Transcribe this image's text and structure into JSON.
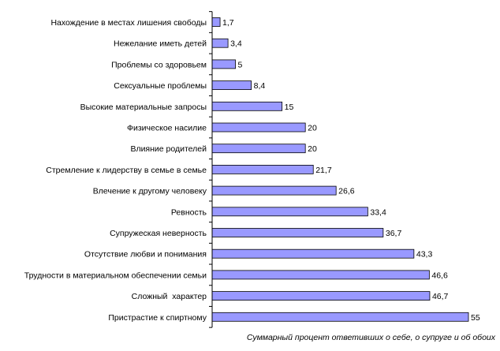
{
  "chart_data": {
    "type": "bar",
    "orientation": "horizontal",
    "categories": [
      "Нахождение в местах лишения свободы",
      "Нежелание иметь детей",
      "Проблемы со здоровьем",
      "Сексуальные проблемы",
      "Высокие материальные запросы",
      "Физическое насилие",
      "Влияние родителей",
      "Стремление к лидерству в семье в семье",
      "Влечение к другому человеку",
      "Ревность",
      "Супружеская неверность",
      "Отсутствие любви и понимания",
      "Трудности в материальном обеспечении семьи",
      "Сложный  характер",
      "Пристрастие к спиртному"
    ],
    "values": [
      1.7,
      3.4,
      5,
      8.4,
      15,
      20,
      20,
      21.7,
      26.6,
      33.4,
      36.7,
      43.3,
      46.6,
      46.7,
      55
    ],
    "value_labels": [
      "1,7",
      "3,4",
      "5",
      "8,4",
      "15",
      "20",
      "20",
      "21,7",
      "26,6",
      "33,4",
      "36,7",
      "43,3",
      "46,6",
      "46,7",
      "55"
    ],
    "xlabel": "Суммарный процент ответивших о себе, о супруге и об обоих",
    "xlim": [
      0,
      55
    ],
    "grid": false,
    "legend": "none",
    "bar_color": "#9999ff",
    "bar_edge_color": "#000000"
  }
}
